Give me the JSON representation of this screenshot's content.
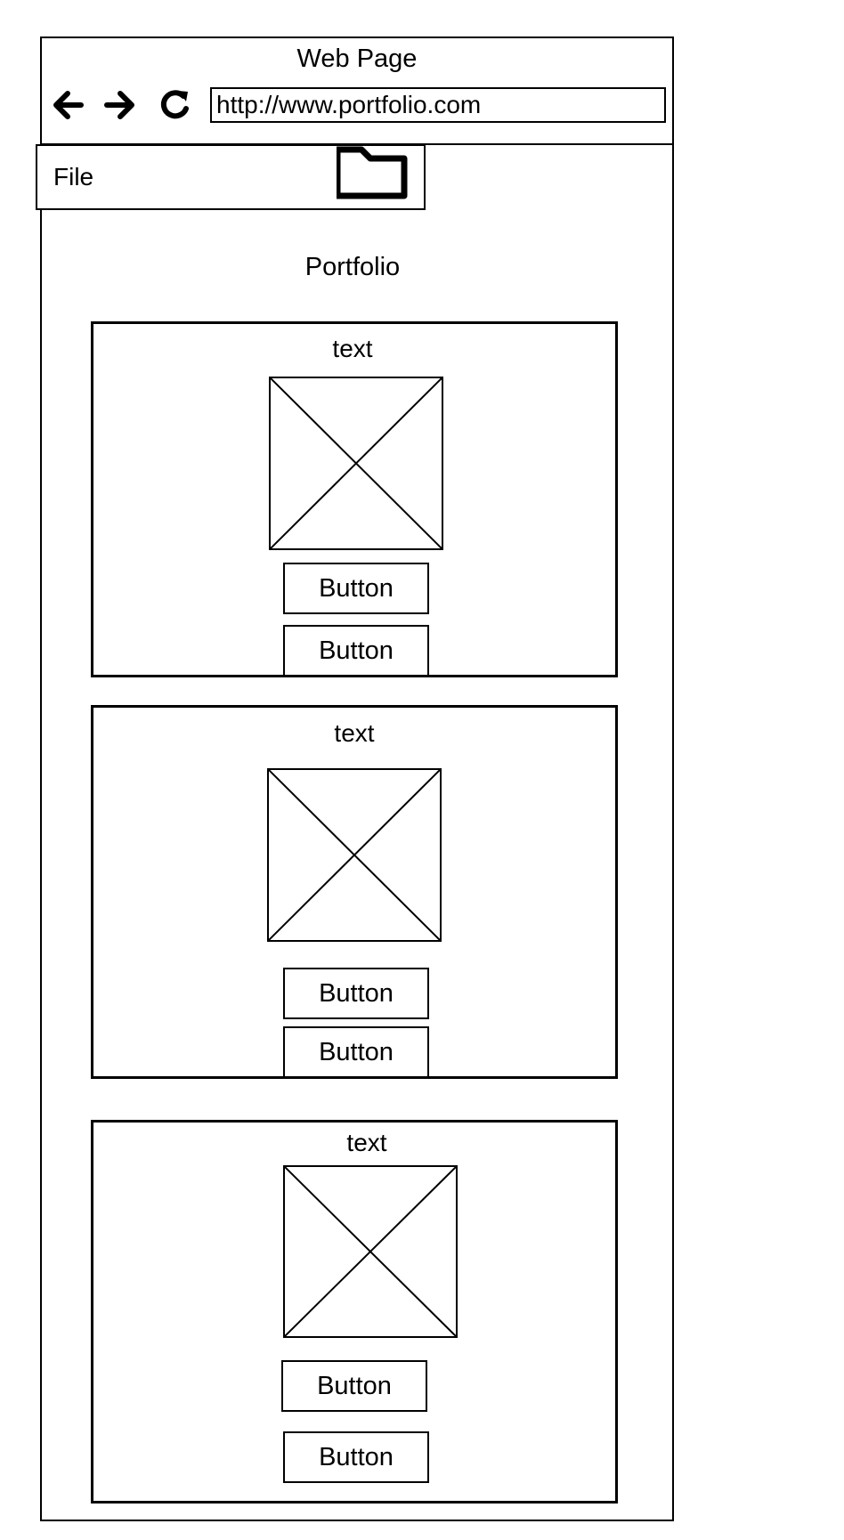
{
  "window": {
    "title": "Web Page",
    "url": "http://www.portfolio.com"
  },
  "icons": {
    "back": "arrow-left-icon",
    "forward": "arrow-right-icon",
    "reload": "reload-icon",
    "folder": "folder-icon"
  },
  "menu": {
    "file_label": "File"
  },
  "page": {
    "heading": "Portfolio"
  },
  "cards": [
    {
      "text": "text",
      "buttons": [
        "Button",
        "Button"
      ]
    },
    {
      "text": "text",
      "buttons": [
        "Button",
        "Button"
      ]
    },
    {
      "text": "text",
      "buttons": [
        "Button",
        "Button"
      ]
    }
  ]
}
